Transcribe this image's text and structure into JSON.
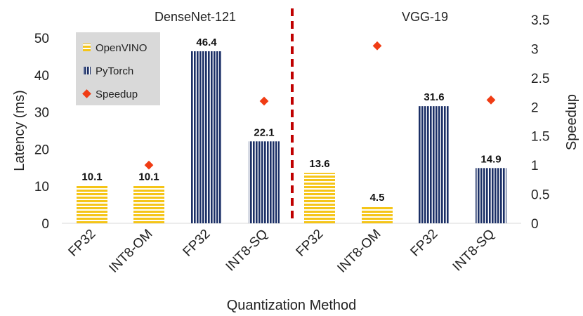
{
  "chart_data": {
    "type": "bar",
    "title": "",
    "xlabel": "Quantization Method",
    "ylabel": "Latency (ms)",
    "y2label": "Speedup",
    "ylim": [
      0,
      50
    ],
    "yticks": [
      "0",
      "10",
      "20",
      "30",
      "40",
      "50"
    ],
    "y2lim": [
      0,
      3.5
    ],
    "y2ticks": [
      "0",
      "0.5",
      "1",
      "1.5",
      "2",
      "2.5",
      "3",
      "3.5"
    ],
    "groups": [
      {
        "name": "DenseNet-121",
        "categories": [
          "FP32",
          "INT8-OM",
          "FP32",
          "INT8-SQ"
        ]
      },
      {
        "name": "VGG-19",
        "categories": [
          "FP32",
          "INT8-OM",
          "FP32",
          "INT8-SQ"
        ]
      }
    ],
    "bars": [
      {
        "category": "FP32",
        "series": "OpenVINO",
        "value": 10.1,
        "label": "10.1"
      },
      {
        "category": "INT8-OM",
        "series": "OpenVINO",
        "value": 10.1,
        "label": "10.1"
      },
      {
        "category": "FP32",
        "series": "PyTorch",
        "value": 46.4,
        "label": "46.4"
      },
      {
        "category": "INT8-SQ",
        "series": "PyTorch",
        "value": 22.1,
        "label": "22.1"
      },
      {
        "category": "FP32",
        "series": "OpenVINO",
        "value": 13.6,
        "label": "13.6"
      },
      {
        "category": "INT8-OM",
        "series": "OpenVINO",
        "value": 4.5,
        "label": "4.5"
      },
      {
        "category": "FP32",
        "series": "PyTorch",
        "value": 31.6,
        "label": "31.6"
      },
      {
        "category": "INT8-SQ",
        "series": "PyTorch",
        "value": 14.9,
        "label": "14.9"
      }
    ],
    "speedup": [
      {
        "index": 1,
        "value": 1.0
      },
      {
        "index": 3,
        "value": 2.1
      },
      {
        "index": 5,
        "value": 3.05
      },
      {
        "index": 7,
        "value": 2.12
      }
    ],
    "legend": [
      {
        "name": "OpenVINO",
        "color": "#f5c518"
      },
      {
        "name": "PyTorch",
        "color": "#1b2f66"
      },
      {
        "name": "Speedup",
        "color": "#f03c14"
      }
    ],
    "divider_color": "#c00000",
    "legend_bg": "#d9d9d9"
  }
}
